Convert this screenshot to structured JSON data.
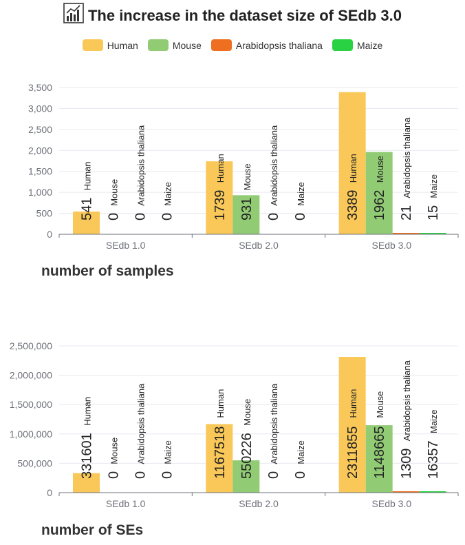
{
  "title": "The increase in the dataset size of SEdb 3.0",
  "title_icon": "bar-chart-icon",
  "legend": [
    {
      "name": "Human",
      "color": "#f9c859"
    },
    {
      "name": "Mouse",
      "color": "#91cc75"
    },
    {
      "name": "Arabidopsis thaliana",
      "color": "#ee6f1f"
    },
    {
      "name": "Maize",
      "color": "#29d243"
    }
  ],
  "chart_data": [
    {
      "type": "bar",
      "title": "number of samples",
      "categories": [
        "SEdb 1.0",
        "SEdb 2.0",
        "SEdb 3.0"
      ],
      "ylim": [
        0,
        3500
      ],
      "yticks": [
        0,
        500,
        1000,
        1500,
        2000,
        2500,
        3000,
        3500
      ],
      "ytick_labels": [
        "0",
        "500",
        "1,000",
        "1,500",
        "2,000",
        "2,500",
        "3,000",
        "3,500"
      ],
      "series": [
        {
          "name": "Human",
          "values": [
            541,
            1739,
            3389
          ]
        },
        {
          "name": "Mouse",
          "values": [
            0,
            931,
            1962
          ]
        },
        {
          "name": "Arabidopsis thaliana",
          "values": [
            0,
            0,
            21
          ]
        },
        {
          "name": "Maize",
          "values": [
            0,
            0,
            15
          ]
        }
      ]
    },
    {
      "type": "bar",
      "title": "number of SEs",
      "categories": [
        "SEdb 1.0",
        "SEdb 2.0",
        "SEdb 3.0"
      ],
      "ylim": [
        0,
        2500000
      ],
      "yticks": [
        0,
        500000,
        1000000,
        1500000,
        2000000,
        2500000
      ],
      "ytick_labels": [
        "0",
        "500,000",
        "1,000,000",
        "1,500,000",
        "2,000,000",
        "2,500,000"
      ],
      "series": [
        {
          "name": "Human",
          "values": [
            331601,
            1167518,
            2311855
          ]
        },
        {
          "name": "Mouse",
          "values": [
            0,
            550226,
            1148665
          ]
        },
        {
          "name": "Arabidopsis thaliana",
          "values": [
            0,
            0,
            1309
          ]
        },
        {
          "name": "Maize",
          "values": [
            0,
            0,
            16357
          ]
        }
      ]
    }
  ]
}
